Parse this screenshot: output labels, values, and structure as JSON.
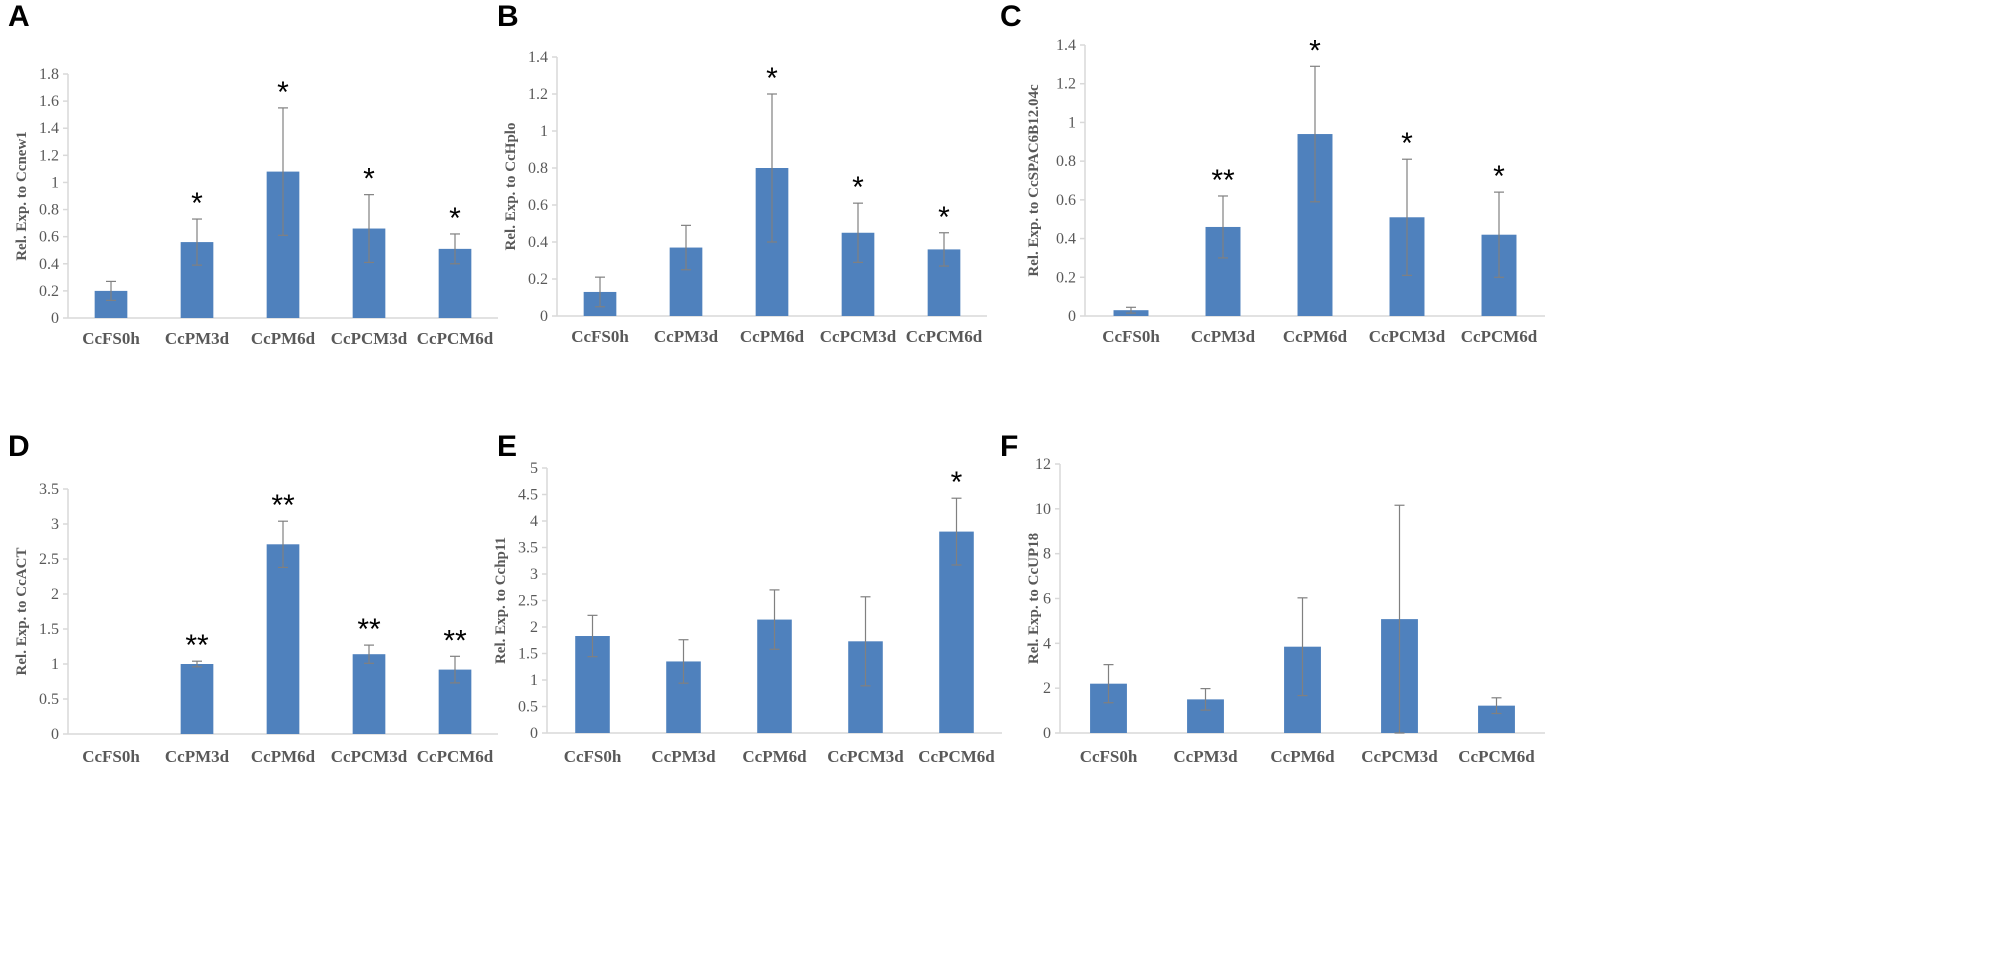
{
  "figure": {
    "panel_labels": [
      "A",
      "B",
      "C",
      "D",
      "E",
      "F"
    ]
  },
  "colors": {
    "bar": "#4f81bd",
    "error": "#808080",
    "axis": "#d9d9d9",
    "text": "#595959",
    "sig": "#000000"
  },
  "chart_data": [
    {
      "type": "bar",
      "panel": "A",
      "categories": [
        "CcFS0h",
        "CcPM3d",
        "CcPM6d",
        "CcPCM3d",
        "CcPCM6d"
      ],
      "values": [
        0.2,
        0.56,
        1.08,
        0.66,
        0.51
      ],
      "errors": [
        0.07,
        0.17,
        0.47,
        0.25,
        0.11
      ],
      "significance": [
        "",
        "*",
        "*",
        "*",
        "*"
      ],
      "ylabel": "Rel. Exp. to Ccnew1",
      "ylim": [
        0,
        1.8
      ],
      "yticks": [
        0,
        0.2,
        0.4,
        0.6,
        0.8,
        1,
        1.2,
        1.4,
        1.6,
        1.8
      ],
      "ytick_labels": [
        "0",
        "0.2",
        "0.4",
        "0.6",
        "0.8",
        "1",
        "1.2",
        "1.4",
        "1.6",
        "1.8"
      ]
    },
    {
      "type": "bar",
      "panel": "B",
      "categories": [
        "CcFS0h",
        "CcPM3d",
        "CcPM6d",
        "CcPCM3d",
        "CcPCM6d"
      ],
      "values": [
        0.13,
        0.37,
        0.8,
        0.45,
        0.36
      ],
      "errors": [
        0.08,
        0.12,
        0.4,
        0.16,
        0.09
      ],
      "significance": [
        "",
        "",
        "*",
        "*",
        "*"
      ],
      "ylabel": "Rel. Exp. to CcHplo",
      "ylim": [
        0,
        1.4
      ],
      "yticks": [
        0,
        0.2,
        0.4,
        0.6,
        0.8,
        1,
        1.2,
        1.4
      ],
      "ytick_labels": [
        "0",
        "0.2",
        "0.4",
        "0.6",
        "0.8",
        "1",
        "1.2",
        "1.4"
      ]
    },
    {
      "type": "bar",
      "panel": "C",
      "categories": [
        "CcFS0h",
        "CcPM3d",
        "CcPM6d",
        "CcPCM3d",
        "CcPCM6d"
      ],
      "values": [
        0.03,
        0.46,
        0.94,
        0.51,
        0.42
      ],
      "errors": [
        0.015,
        0.16,
        0.35,
        0.3,
        0.22
      ],
      "significance": [
        "",
        "**",
        "*",
        "*",
        "*"
      ],
      "ylabel": "Rel. Exp. to CcSPAC6B12.04c",
      "ylim": [
        0,
        1.4
      ],
      "yticks": [
        0,
        0.2,
        0.4,
        0.6,
        0.8,
        1,
        1.2,
        1.4
      ],
      "ytick_labels": [
        "0",
        "0.2",
        "0.4",
        "0.6",
        "0.8",
        "1",
        "1.2",
        "1.4"
      ]
    },
    {
      "type": "bar",
      "panel": "D",
      "categories": [
        "CcFS0h",
        "CcPM3d",
        "CcPM6d",
        "CcPCM3d",
        "CcPCM6d"
      ],
      "values": [
        0,
        1.0,
        2.71,
        1.14,
        0.92
      ],
      "errors": [
        0,
        0.04,
        0.33,
        0.13,
        0.19
      ],
      "significance": [
        "",
        "**",
        "**",
        "**",
        "**"
      ],
      "ylabel": "Rel. Exp. to CcACT",
      "ylim": [
        0,
        3.5
      ],
      "yticks": [
        0,
        0.5,
        1,
        1.5,
        2,
        2.5,
        3,
        3.5
      ],
      "ytick_labels": [
        "0",
        "0.5",
        "1",
        "1.5",
        "2",
        "2.5",
        "3",
        "3.5"
      ]
    },
    {
      "type": "bar",
      "panel": "E",
      "categories": [
        "CcFS0h",
        "CcPM3d",
        "CcPM6d",
        "CcPCM3d",
        "CcPCM6d"
      ],
      "values": [
        1.83,
        1.35,
        2.14,
        1.73,
        3.8
      ],
      "errors": [
        0.39,
        0.41,
        0.56,
        0.84,
        0.63
      ],
      "significance": [
        "",
        "",
        "",
        "",
        "*"
      ],
      "ylabel": "Rel. Exp. to Cchp11",
      "ylim": [
        0,
        5
      ],
      "yticks": [
        0,
        0.5,
        1,
        1.5,
        2,
        2.5,
        3,
        3.5,
        4,
        4.5,
        5
      ],
      "ytick_labels": [
        "0",
        "0.5",
        "1",
        "1.5",
        "2",
        "2.5",
        "3",
        "3.5",
        "4",
        "4.5",
        "5"
      ]
    },
    {
      "type": "bar",
      "panel": "F",
      "categories": [
        "CcFS0h",
        "CcPM3d",
        "CcPM6d",
        "CcPCM3d",
        "CcPCM6d"
      ],
      "values": [
        2.2,
        1.5,
        3.85,
        5.08,
        1.22
      ],
      "errors": [
        0.85,
        0.48,
        2.18,
        5.08,
        0.35
      ],
      "significance": [
        "",
        "",
        "",
        "",
        ""
      ],
      "ylabel": "Rel. Exp. to CcUP18",
      "ylim": [
        0,
        12
      ],
      "yticks": [
        0,
        2,
        4,
        6,
        8,
        10,
        12
      ],
      "ytick_labels": [
        "0",
        "2",
        "4",
        "6",
        "8",
        "10",
        "12"
      ]
    }
  ]
}
